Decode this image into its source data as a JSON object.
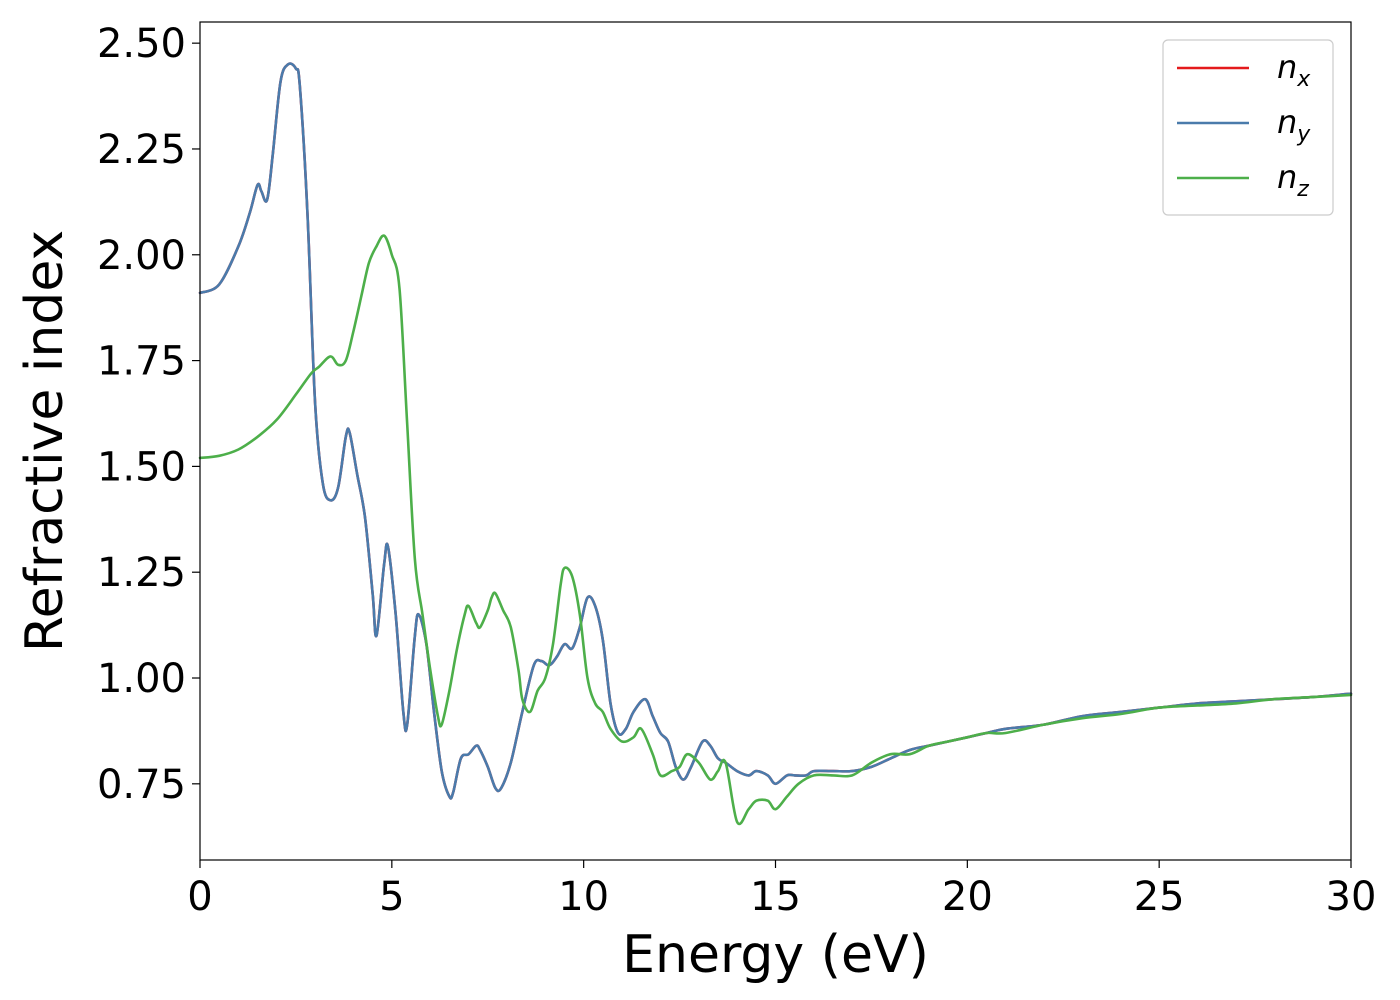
{
  "chart_data": {
    "type": "line",
    "xlabel": "Energy (eV)",
    "ylabel": "Refractive index",
    "xlim": [
      0,
      30
    ],
    "ylim": [
      0.57,
      2.55
    ],
    "xticks": [
      "0",
      "5",
      "10",
      "15",
      "20",
      "25",
      "30"
    ],
    "yticks": [
      "0.75",
      "1.00",
      "1.25",
      "1.50",
      "1.75",
      "2.00",
      "2.25",
      "2.50"
    ],
    "grid": false,
    "legend_position": "top-right",
    "series": [
      {
        "name": "n",
        "subscript": "x",
        "color": "#e41a1c",
        "x": [
          0,
          0.5,
          1.0,
          1.3,
          1.5,
          1.6,
          1.75,
          1.9,
          2.1,
          2.3,
          2.5,
          2.6,
          2.8,
          3.0,
          3.2,
          3.4,
          3.6,
          3.8,
          3.9,
          4.1,
          4.3,
          4.5,
          4.6,
          4.8,
          4.9,
          5.1,
          5.3,
          5.4,
          5.6,
          5.7,
          5.9,
          6.1,
          6.3,
          6.5,
          6.6,
          6.8,
          7.0,
          7.2,
          7.3,
          7.5,
          7.7,
          7.85,
          8.1,
          8.4,
          8.7,
          8.9,
          9.1,
          9.3,
          9.5,
          9.7,
          9.9,
          10.1,
          10.3,
          10.5,
          10.7,
          10.9,
          11.1,
          11.3,
          11.6,
          11.8,
          12.0,
          12.2,
          12.4,
          12.6,
          12.8,
          13.1,
          13.3,
          13.5,
          13.7,
          14.0,
          14.3,
          14.5,
          14.8,
          15.0,
          15.3,
          15.5,
          15.8,
          16.0,
          16.5,
          17.0,
          17.5,
          18.0,
          18.5,
          19.0,
          19.5,
          20.0,
          20.5,
          21.0,
          22.0,
          23.0,
          24.0,
          25.0,
          26.0,
          27.0,
          28.0,
          29.0,
          30.0
        ],
        "y": [
          1.91,
          1.93,
          2.02,
          2.1,
          2.165,
          2.15,
          2.13,
          2.24,
          2.41,
          2.45,
          2.44,
          2.4,
          2.1,
          1.65,
          1.46,
          1.42,
          1.45,
          1.57,
          1.58,
          1.48,
          1.38,
          1.2,
          1.1,
          1.27,
          1.31,
          1.15,
          0.92,
          0.89,
          1.1,
          1.15,
          1.08,
          0.92,
          0.78,
          0.72,
          0.73,
          0.81,
          0.82,
          0.84,
          0.83,
          0.79,
          0.74,
          0.74,
          0.8,
          0.92,
          1.03,
          1.04,
          1.03,
          1.05,
          1.08,
          1.07,
          1.12,
          1.19,
          1.17,
          1.09,
          0.94,
          0.87,
          0.88,
          0.92,
          0.95,
          0.91,
          0.87,
          0.85,
          0.79,
          0.76,
          0.79,
          0.85,
          0.84,
          0.81,
          0.8,
          0.78,
          0.77,
          0.78,
          0.77,
          0.75,
          0.77,
          0.77,
          0.77,
          0.78,
          0.78,
          0.78,
          0.79,
          0.81,
          0.83,
          0.84,
          0.85,
          0.86,
          0.87,
          0.88,
          0.89,
          0.91,
          0.92,
          0.93,
          0.94,
          0.945,
          0.95,
          0.955,
          0.963
        ]
      },
      {
        "name": "n",
        "subscript": "y",
        "color": "#4a7bab",
        "x": [
          0,
          0.5,
          1.0,
          1.3,
          1.5,
          1.6,
          1.75,
          1.9,
          2.1,
          2.3,
          2.5,
          2.6,
          2.8,
          3.0,
          3.2,
          3.4,
          3.6,
          3.8,
          3.9,
          4.1,
          4.3,
          4.5,
          4.6,
          4.8,
          4.9,
          5.1,
          5.3,
          5.4,
          5.6,
          5.7,
          5.9,
          6.1,
          6.3,
          6.5,
          6.6,
          6.8,
          7.0,
          7.2,
          7.3,
          7.5,
          7.7,
          7.85,
          8.1,
          8.4,
          8.7,
          8.9,
          9.1,
          9.3,
          9.5,
          9.7,
          9.9,
          10.1,
          10.3,
          10.5,
          10.7,
          10.9,
          11.1,
          11.3,
          11.6,
          11.8,
          12.0,
          12.2,
          12.4,
          12.6,
          12.8,
          13.1,
          13.3,
          13.5,
          13.7,
          14.0,
          14.3,
          14.5,
          14.8,
          15.0,
          15.3,
          15.5,
          15.8,
          16.0,
          16.5,
          17.0,
          17.5,
          18.0,
          18.5,
          19.0,
          19.5,
          20.0,
          20.5,
          21.0,
          22.0,
          23.0,
          24.0,
          25.0,
          26.0,
          27.0,
          28.0,
          29.0,
          30.0
        ],
        "y": [
          1.91,
          1.93,
          2.02,
          2.1,
          2.165,
          2.15,
          2.13,
          2.24,
          2.41,
          2.45,
          2.44,
          2.4,
          2.1,
          1.65,
          1.46,
          1.42,
          1.45,
          1.57,
          1.58,
          1.48,
          1.38,
          1.2,
          1.1,
          1.27,
          1.31,
          1.15,
          0.92,
          0.89,
          1.1,
          1.15,
          1.08,
          0.92,
          0.78,
          0.72,
          0.73,
          0.81,
          0.82,
          0.84,
          0.83,
          0.79,
          0.74,
          0.74,
          0.8,
          0.92,
          1.03,
          1.04,
          1.03,
          1.05,
          1.08,
          1.07,
          1.12,
          1.19,
          1.17,
          1.09,
          0.94,
          0.87,
          0.88,
          0.92,
          0.95,
          0.91,
          0.87,
          0.85,
          0.79,
          0.76,
          0.79,
          0.85,
          0.84,
          0.81,
          0.8,
          0.78,
          0.77,
          0.78,
          0.77,
          0.75,
          0.77,
          0.77,
          0.77,
          0.78,
          0.78,
          0.78,
          0.79,
          0.81,
          0.83,
          0.84,
          0.85,
          0.86,
          0.87,
          0.88,
          0.89,
          0.91,
          0.92,
          0.93,
          0.94,
          0.945,
          0.95,
          0.955,
          0.963
        ]
      },
      {
        "name": "n",
        "subscript": "z",
        "color": "#4daf4a",
        "x": [
          0,
          0.5,
          1.0,
          1.5,
          2.0,
          2.5,
          2.9,
          3.1,
          3.4,
          3.6,
          3.8,
          4.0,
          4.2,
          4.4,
          4.6,
          4.8,
          5.0,
          5.2,
          5.4,
          5.6,
          5.8,
          6.0,
          6.2,
          6.3,
          6.5,
          6.7,
          6.9,
          7.0,
          7.2,
          7.3,
          7.5,
          7.6,
          7.7,
          7.9,
          8.1,
          8.3,
          8.4,
          8.6,
          8.8,
          9.0,
          9.2,
          9.4,
          9.5,
          9.7,
          9.9,
          10.1,
          10.3,
          10.5,
          10.7,
          11.0,
          11.3,
          11.5,
          11.8,
          12.0,
          12.3,
          12.5,
          12.7,
          13.0,
          13.3,
          13.5,
          13.7,
          14.0,
          14.3,
          14.5,
          14.8,
          15.0,
          15.3,
          15.6,
          16.0,
          16.5,
          17.0,
          17.5,
          18.0,
          18.5,
          19.0,
          19.5,
          20.0,
          20.5,
          21.0,
          22.0,
          23.0,
          24.0,
          25.0,
          26.0,
          27.0,
          28.0,
          29.0,
          30.0
        ],
        "y": [
          1.52,
          1.525,
          1.54,
          1.57,
          1.61,
          1.67,
          1.72,
          1.735,
          1.76,
          1.74,
          1.75,
          1.82,
          1.9,
          1.98,
          2.02,
          2.045,
          2.0,
          1.92,
          1.6,
          1.28,
          1.15,
          1.02,
          0.91,
          0.89,
          0.97,
          1.07,
          1.15,
          1.17,
          1.13,
          1.12,
          1.16,
          1.19,
          1.2,
          1.16,
          1.12,
          1.02,
          0.95,
          0.92,
          0.97,
          1.0,
          1.08,
          1.22,
          1.26,
          1.24,
          1.15,
          1.0,
          0.94,
          0.92,
          0.88,
          0.85,
          0.86,
          0.88,
          0.82,
          0.77,
          0.78,
          0.79,
          0.82,
          0.8,
          0.76,
          0.78,
          0.8,
          0.66,
          0.69,
          0.71,
          0.71,
          0.69,
          0.72,
          0.75,
          0.77,
          0.77,
          0.77,
          0.8,
          0.82,
          0.82,
          0.84,
          0.85,
          0.86,
          0.87,
          0.87,
          0.89,
          0.905,
          0.915,
          0.93,
          0.935,
          0.94,
          0.95,
          0.955,
          0.96
        ]
      }
    ]
  }
}
